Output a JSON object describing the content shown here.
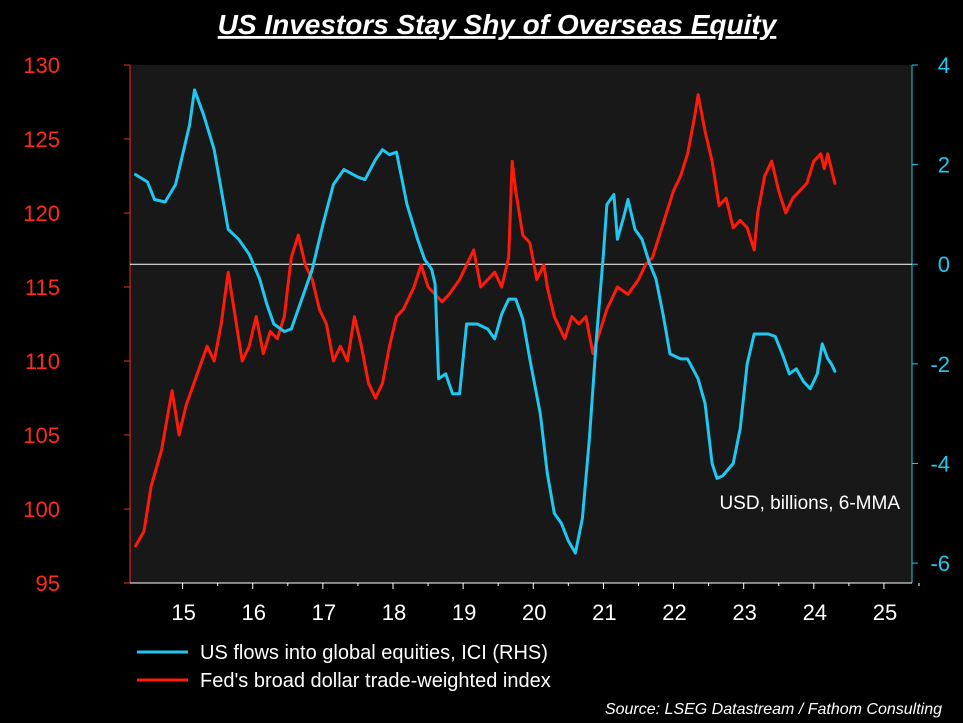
{
  "chart_data": {
    "type": "line",
    "title": "US Investors Stay Shy of Overseas Equity",
    "annotation": "USD, billions, 6-MMA",
    "source": "Source: LSEG Datastream / Fathom Consulting",
    "left_axis": {
      "ylim": [
        95,
        130
      ],
      "ticks": [
        "95",
        "100",
        "105",
        "110",
        "115",
        "120",
        "125",
        "130"
      ],
      "color": "#ff2a1a"
    },
    "right_axis": {
      "ylim": [
        -6.4,
        4
      ],
      "ticks": [
        "-6",
        "-4",
        "-2",
        "0",
        "2",
        "4"
      ],
      "color": "#1ec8f0"
    },
    "x_axis": {
      "xlim": [
        2014.25,
        2025.4
      ],
      "ticks": [
        "15",
        "16",
        "17",
        "18",
        "19",
        "20",
        "21",
        "22",
        "23",
        "24",
        "25"
      ]
    },
    "zero_line": 0,
    "grid": false,
    "legend_placement": "bottom",
    "series": [
      {
        "name": "US flows into global equities, ICI (RHS)",
        "axis": "right",
        "color": "#1ec8f0",
        "points": [
          [
            2014.33,
            1.8
          ],
          [
            2014.5,
            1.65
          ],
          [
            2014.6,
            1.3
          ],
          [
            2014.75,
            1.25
          ],
          [
            2014.9,
            1.6
          ],
          [
            2015.0,
            2.2
          ],
          [
            2015.1,
            2.8
          ],
          [
            2015.17,
            3.5
          ],
          [
            2015.3,
            3.0
          ],
          [
            2015.45,
            2.3
          ],
          [
            2015.55,
            1.5
          ],
          [
            2015.65,
            0.7
          ],
          [
            2015.8,
            0.5
          ],
          [
            2015.95,
            0.2
          ],
          [
            2016.1,
            -0.3
          ],
          [
            2016.2,
            -0.8
          ],
          [
            2016.3,
            -1.2
          ],
          [
            2016.45,
            -1.35
          ],
          [
            2016.55,
            -1.3
          ],
          [
            2016.7,
            -0.7
          ],
          [
            2016.85,
            -0.1
          ],
          [
            2017.0,
            0.8
          ],
          [
            2017.15,
            1.6
          ],
          [
            2017.3,
            1.9
          ],
          [
            2017.5,
            1.75
          ],
          [
            2017.6,
            1.7
          ],
          [
            2017.75,
            2.1
          ],
          [
            2017.85,
            2.3
          ],
          [
            2017.95,
            2.2
          ],
          [
            2018.05,
            2.25
          ],
          [
            2018.2,
            1.2
          ],
          [
            2018.35,
            0.5
          ],
          [
            2018.45,
            0.1
          ],
          [
            2018.55,
            -0.1
          ],
          [
            2018.6,
            -0.4
          ],
          [
            2018.65,
            -2.3
          ],
          [
            2018.75,
            -2.2
          ],
          [
            2018.85,
            -2.6
          ],
          [
            2018.95,
            -2.6
          ],
          [
            2019.05,
            -1.2
          ],
          [
            2019.2,
            -1.2
          ],
          [
            2019.35,
            -1.3
          ],
          [
            2019.45,
            -1.5
          ],
          [
            2019.55,
            -1.0
          ],
          [
            2019.65,
            -0.7
          ],
          [
            2019.75,
            -0.7
          ],
          [
            2019.85,
            -1.1
          ],
          [
            2019.95,
            -1.9
          ],
          [
            2020.1,
            -3.0
          ],
          [
            2020.2,
            -4.2
          ],
          [
            2020.3,
            -5.0
          ],
          [
            2020.4,
            -5.2
          ],
          [
            2020.5,
            -5.55
          ],
          [
            2020.6,
            -5.8
          ],
          [
            2020.7,
            -5.1
          ],
          [
            2020.8,
            -3.5
          ],
          [
            2020.9,
            -1.5
          ],
          [
            2021.0,
            0.2
          ],
          [
            2021.05,
            1.2
          ],
          [
            2021.15,
            1.4
          ],
          [
            2021.2,
            0.5
          ],
          [
            2021.3,
            1.0
          ],
          [
            2021.35,
            1.3
          ],
          [
            2021.45,
            0.7
          ],
          [
            2021.55,
            0.5
          ],
          [
            2021.65,
            0.05
          ],
          [
            2021.75,
            -0.3
          ],
          [
            2021.85,
            -1.0
          ],
          [
            2021.95,
            -1.8
          ],
          [
            2022.1,
            -1.9
          ],
          [
            2022.2,
            -1.9
          ],
          [
            2022.35,
            -2.3
          ],
          [
            2022.45,
            -2.8
          ],
          [
            2022.55,
            -4.0
          ],
          [
            2022.62,
            -4.3
          ],
          [
            2022.7,
            -4.25
          ],
          [
            2022.85,
            -4.0
          ],
          [
            2022.95,
            -3.3
          ],
          [
            2023.05,
            -2.0
          ],
          [
            2023.15,
            -1.4
          ],
          [
            2023.35,
            -1.4
          ],
          [
            2023.45,
            -1.45
          ],
          [
            2023.55,
            -1.8
          ],
          [
            2023.65,
            -2.2
          ],
          [
            2023.75,
            -2.1
          ],
          [
            2023.85,
            -2.35
          ],
          [
            2023.95,
            -2.5
          ],
          [
            2024.05,
            -2.2
          ],
          [
            2024.12,
            -1.6
          ],
          [
            2024.2,
            -1.9
          ],
          [
            2024.25,
            -2.0
          ],
          [
            2024.3,
            -2.15
          ]
        ]
      },
      {
        "name": "Fed's broad dollar trade-weighted index",
        "axis": "left",
        "color": "#ff1a0a",
        "points": [
          [
            2014.33,
            97.5
          ],
          [
            2014.45,
            98.5
          ],
          [
            2014.55,
            101.5
          ],
          [
            2014.7,
            104.0
          ],
          [
            2014.85,
            108.0
          ],
          [
            2014.95,
            105.0
          ],
          [
            2015.05,
            107.0
          ],
          [
            2015.2,
            109.0
          ],
          [
            2015.35,
            111.0
          ],
          [
            2015.45,
            110.0
          ],
          [
            2015.55,
            112.5
          ],
          [
            2015.65,
            116.0
          ],
          [
            2015.75,
            113.0
          ],
          [
            2015.85,
            110.0
          ],
          [
            2015.95,
            111.0
          ],
          [
            2016.05,
            113.0
          ],
          [
            2016.15,
            110.5
          ],
          [
            2016.25,
            112.0
          ],
          [
            2016.35,
            111.5
          ],
          [
            2016.45,
            113.0
          ],
          [
            2016.5,
            115.0
          ],
          [
            2016.55,
            117.0
          ],
          [
            2016.65,
            118.5
          ],
          [
            2016.75,
            116.5
          ],
          [
            2016.85,
            115.5
          ],
          [
            2016.95,
            113.5
          ],
          [
            2017.05,
            112.5
          ],
          [
            2017.15,
            110.0
          ],
          [
            2017.25,
            111.0
          ],
          [
            2017.35,
            110.0
          ],
          [
            2017.45,
            113.0
          ],
          [
            2017.55,
            111.0
          ],
          [
            2017.65,
            108.5
          ],
          [
            2017.75,
            107.5
          ],
          [
            2017.85,
            108.5
          ],
          [
            2017.95,
            111.0
          ],
          [
            2018.05,
            113.0
          ],
          [
            2018.15,
            113.5
          ],
          [
            2018.3,
            115.0
          ],
          [
            2018.4,
            116.5
          ],
          [
            2018.5,
            115.0
          ],
          [
            2018.6,
            114.5
          ],
          [
            2018.7,
            114.0
          ],
          [
            2018.8,
            114.5
          ],
          [
            2018.95,
            115.5
          ],
          [
            2019.05,
            116.5
          ],
          [
            2019.15,
            117.5
          ],
          [
            2019.25,
            115.0
          ],
          [
            2019.35,
            115.5
          ],
          [
            2019.45,
            116.0
          ],
          [
            2019.55,
            115.0
          ],
          [
            2019.65,
            117.0
          ],
          [
            2019.7,
            123.5
          ],
          [
            2019.75,
            121.5
          ],
          [
            2019.85,
            118.5
          ],
          [
            2019.95,
            118.0
          ],
          [
            2020.05,
            115.5
          ],
          [
            2020.15,
            116.5
          ],
          [
            2020.2,
            115.0
          ],
          [
            2020.3,
            113.0
          ],
          [
            2020.45,
            111.5
          ],
          [
            2020.55,
            113.0
          ],
          [
            2020.65,
            112.5
          ],
          [
            2020.75,
            113.0
          ],
          [
            2020.85,
            110.5
          ],
          [
            2020.95,
            112.0
          ],
          [
            2021.05,
            113.5
          ],
          [
            2021.2,
            115.0
          ],
          [
            2021.35,
            114.5
          ],
          [
            2021.5,
            115.5
          ],
          [
            2021.6,
            116.5
          ],
          [
            2021.7,
            117.0
          ],
          [
            2021.8,
            118.5
          ],
          [
            2021.9,
            120.0
          ],
          [
            2022.0,
            121.5
          ],
          [
            2022.1,
            122.5
          ],
          [
            2022.2,
            124.0
          ],
          [
            2022.3,
            126.5
          ],
          [
            2022.35,
            128.0
          ],
          [
            2022.45,
            125.5
          ],
          [
            2022.55,
            123.5
          ],
          [
            2022.65,
            120.5
          ],
          [
            2022.75,
            121.0
          ],
          [
            2022.85,
            119.0
          ],
          [
            2022.95,
            119.5
          ],
          [
            2023.05,
            119.0
          ],
          [
            2023.15,
            117.5
          ],
          [
            2023.2,
            120.0
          ],
          [
            2023.3,
            122.5
          ],
          [
            2023.4,
            123.5
          ],
          [
            2023.5,
            121.5
          ],
          [
            2023.6,
            120.0
          ],
          [
            2023.7,
            121.0
          ],
          [
            2023.8,
            121.5
          ],
          [
            2023.9,
            122.0
          ],
          [
            2024.0,
            123.5
          ],
          [
            2024.1,
            124.0
          ],
          [
            2024.15,
            123.0
          ],
          [
            2024.2,
            124.0
          ],
          [
            2024.25,
            123.0
          ],
          [
            2024.3,
            122.0
          ]
        ]
      }
    ]
  }
}
